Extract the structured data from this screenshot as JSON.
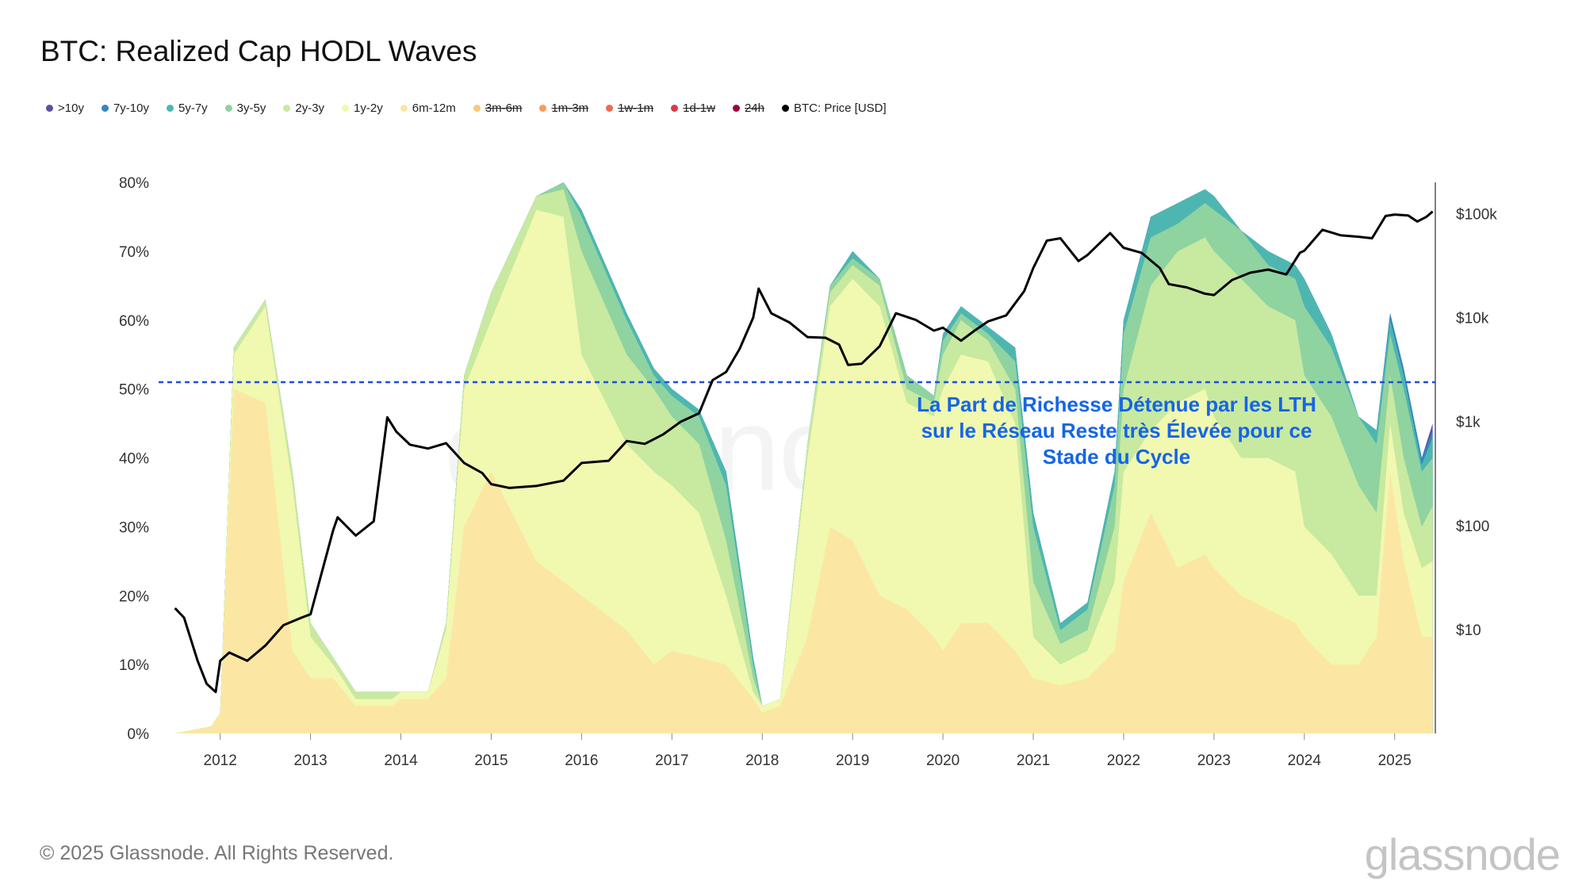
{
  "title": "BTC: Realized Cap HODL Waves",
  "legend": [
    {
      "label": ">10y",
      "color": "#5e4fa2",
      "active": true
    },
    {
      "label": "7y-10y",
      "color": "#3288bd",
      "active": true
    },
    {
      "label": "5y-7y",
      "color": "#4eb6b0",
      "active": true
    },
    {
      "label": "3y-5y",
      "color": "#8fd3a1",
      "active": true
    },
    {
      "label": "2y-3y",
      "color": "#c8e9a0",
      "active": true
    },
    {
      "label": "1y-2y",
      "color": "#f1f8b0",
      "active": true
    },
    {
      "label": "6m-12m",
      "color": "#fbe7a3",
      "active": true
    },
    {
      "label": "3m-6m",
      "color": "#fbc779",
      "active": false
    },
    {
      "label": "1m-3m",
      "color": "#f99b5b",
      "active": false
    },
    {
      "label": "1w-1m",
      "color": "#ec6a4b",
      "active": false
    },
    {
      "label": "1d-1w",
      "color": "#d63c4b",
      "active": false
    },
    {
      "label": "24h",
      "color": "#9e0142",
      "active": false
    },
    {
      "label": "BTC: Price [USD]",
      "color": "#000000",
      "active": true
    }
  ],
  "annotation": "La Part de Richesse Détenue par les LTH sur le Réseau Reste très Élevée pour ce Stade du Cycle",
  "footer": "© 2025 Glassnode. All Rights Reserved.",
  "brand": "glassnode",
  "watermark": "glassnode",
  "colors": {
    "threshold_line": "#1a4fe0",
    "annotation": "#1565e6",
    "price": "#000000"
  },
  "chart_data": {
    "type": "area",
    "title": "BTC: Realized Cap HODL Waves",
    "x_range": [
      2011.45,
      2025.45
    ],
    "x_ticks": [
      "2012",
      "2013",
      "2014",
      "2015",
      "2016",
      "2017",
      "2018",
      "2019",
      "2020",
      "2021",
      "2022",
      "2023",
      "2024",
      "2025"
    ],
    "y_left": {
      "range": [
        0,
        80
      ],
      "ticks": [
        "0%",
        "10%",
        "20%",
        "30%",
        "40%",
        "50%",
        "60%",
        "70%",
        "80%"
      ]
    },
    "y_right": {
      "scale": "log",
      "range": [
        1,
        200000
      ],
      "ticks": [
        {
          "value": 10,
          "label": "$10"
        },
        {
          "value": 100,
          "label": "$100"
        },
        {
          "value": 1000,
          "label": "$1k"
        },
        {
          "value": 10000,
          "label": "$10k"
        },
        {
          "value": 100000,
          "label": "$100k"
        }
      ]
    },
    "reference_line": {
      "y": 51,
      "style": "dashed"
    },
    "x": [
      2011.5,
      2011.9,
      2012.0,
      2012.15,
      2012.5,
      2012.8,
      2013.0,
      2013.25,
      2013.5,
      2013.9,
      2014.0,
      2014.3,
      2014.5,
      2014.7,
      2015.0,
      2015.5,
      2015.8,
      2016.0,
      2016.5,
      2016.8,
      2017.0,
      2017.3,
      2017.6,
      2017.9,
      2018.0,
      2018.2,
      2018.5,
      2018.75,
      2019.0,
      2019.3,
      2019.6,
      2019.9,
      2020.0,
      2020.2,
      2020.5,
      2020.8,
      2021.0,
      2021.3,
      2021.6,
      2021.9,
      2022.0,
      2022.3,
      2022.6,
      2022.9,
      2023.0,
      2023.3,
      2023.6,
      2023.9,
      2024.0,
      2024.3,
      2024.6,
      2024.8,
      2024.95,
      2025.1,
      2025.3,
      2025.42
    ],
    "series": [
      {
        "name": "6m-12m",
        "cumulative": [
          0,
          1,
          3,
          50,
          48,
          12,
          8,
          8,
          4,
          4,
          5,
          5,
          8,
          30,
          38,
          25,
          22,
          20,
          15,
          10,
          12,
          11,
          10,
          5,
          3,
          4,
          14,
          30,
          28,
          20,
          18,
          14,
          12,
          16,
          16,
          12,
          8,
          7,
          8,
          12,
          22,
          32,
          24,
          26,
          24,
          20,
          18,
          16,
          14,
          10,
          10,
          14,
          38,
          25,
          14,
          14
        ]
      },
      {
        "name": "1y-2y",
        "cumulative": [
          0,
          1,
          3,
          55,
          62,
          36,
          14,
          10,
          5,
          5,
          6,
          6,
          15,
          50,
          60,
          76,
          75,
          55,
          42,
          38,
          36,
          32,
          20,
          6,
          4,
          5,
          40,
          62,
          66,
          62,
          48,
          46,
          50,
          55,
          54,
          45,
          14,
          10,
          12,
          22,
          38,
          44,
          48,
          50,
          46,
          40,
          40,
          38,
          30,
          26,
          20,
          20,
          45,
          32,
          24,
          25
        ]
      },
      {
        "name": "2y-3y",
        "cumulative": [
          0,
          1,
          3,
          56,
          63,
          38,
          16,
          11,
          6,
          6,
          6,
          6,
          16,
          52,
          64,
          78,
          79,
          70,
          55,
          50,
          46,
          42,
          28,
          8,
          4,
          5,
          42,
          64,
          68,
          65,
          50,
          48,
          55,
          60,
          57,
          50,
          22,
          13,
          15,
          30,
          50,
          65,
          70,
          72,
          70,
          66,
          62,
          60,
          52,
          46,
          36,
          32,
          52,
          40,
          30,
          33
        ]
      },
      {
        "name": "3y-5y",
        "cumulative": [
          0,
          1,
          3,
          56,
          63,
          38,
          16,
          11,
          6,
          6,
          6,
          6,
          16,
          52,
          64,
          78,
          80,
          75,
          60,
          52,
          49,
          46,
          36,
          10,
          4,
          5,
          42,
          65,
          69,
          66,
          52,
          49,
          57,
          61,
          58,
          54,
          30,
          15,
          18,
          36,
          58,
          72,
          74,
          77,
          76,
          73,
          68,
          66,
          62,
          56,
          46,
          42,
          58,
          50,
          38,
          40
        ]
      },
      {
        "name": "5y-7y",
        "cumulative": [
          0,
          1,
          3,
          56,
          63,
          38,
          16,
          11,
          6,
          6,
          6,
          6,
          16,
          52,
          64,
          78,
          80,
          76,
          61,
          53,
          50,
          47,
          38,
          11,
          4,
          5,
          42,
          65,
          70,
          66,
          52,
          49,
          58,
          62,
          59,
          56,
          32,
          16,
          19,
          38,
          60,
          75,
          77,
          79,
          78,
          73,
          70,
          68,
          66,
          58,
          46,
          44,
          60,
          52,
          39,
          43
        ]
      },
      {
        "name": "7y-10y",
        "cumulative": [
          0,
          1,
          3,
          56,
          63,
          38,
          16,
          11,
          6,
          6,
          6,
          6,
          16,
          52,
          64,
          78,
          80,
          76,
          61,
          53,
          50,
          47,
          38,
          11,
          4,
          5,
          42,
          65,
          70,
          66,
          52,
          49,
          58,
          62,
          59,
          56,
          32,
          16,
          19,
          38,
          60,
          75,
          77,
          79,
          78,
          73,
          70,
          68,
          66,
          58,
          46,
          44,
          61,
          53,
          40,
          44
        ]
      },
      {
        "name": ">10y",
        "cumulative": [
          0,
          1,
          3,
          56,
          63,
          38,
          16,
          11,
          6,
          6,
          6,
          6,
          16,
          52,
          64,
          78,
          80,
          76,
          61,
          53,
          50,
          47,
          38,
          11,
          4,
          5,
          42,
          65,
          70,
          66,
          52,
          49,
          58,
          62,
          59,
          56,
          32,
          16,
          19,
          38,
          60,
          75,
          77,
          79,
          78,
          73,
          70,
          68,
          66,
          58,
          46,
          44,
          61,
          53,
          40,
          45
        ]
      }
    ],
    "price": {
      "name": "BTC: Price [USD]",
      "x": [
        2011.5,
        2011.6,
        2011.75,
        2011.85,
        2011.95,
        2012.0,
        2012.1,
        2012.3,
        2012.5,
        2012.7,
        2012.9,
        2013.0,
        2013.25,
        2013.3,
        2013.5,
        2013.7,
        2013.85,
        2013.95,
        2014.1,
        2014.3,
        2014.5,
        2014.7,
        2014.9,
        2015.0,
        2015.2,
        2015.5,
        2015.8,
        2016.0,
        2016.3,
        2016.5,
        2016.7,
        2016.9,
        2017.1,
        2017.3,
        2017.45,
        2017.6,
        2017.75,
        2017.9,
        2017.96,
        2018.1,
        2018.3,
        2018.5,
        2018.7,
        2018.85,
        2018.95,
        2019.1,
        2019.3,
        2019.48,
        2019.7,
        2019.9,
        2020.0,
        2020.2,
        2020.35,
        2020.5,
        2020.7,
        2020.9,
        2021.0,
        2021.15,
        2021.3,
        2021.5,
        2021.6,
        2021.85,
        2022.0,
        2022.2,
        2022.4,
        2022.5,
        2022.7,
        2022.9,
        2023.0,
        2023.2,
        2023.4,
        2023.6,
        2023.8,
        2023.95,
        2024.0,
        2024.2,
        2024.4,
        2024.6,
        2024.75,
        2024.9,
        2025.0,
        2025.15,
        2025.25,
        2025.35,
        2025.42
      ],
      "values": [
        16,
        13,
        5,
        3,
        2.5,
        5,
        6,
        5,
        7,
        11,
        13,
        14,
        90,
        120,
        80,
        110,
        1100,
        800,
        600,
        550,
        620,
        400,
        320,
        250,
        230,
        240,
        270,
        400,
        420,
        650,
        610,
        750,
        1000,
        1200,
        2500,
        3000,
        5000,
        10000,
        19000,
        11000,
        9000,
        6500,
        6400,
        5500,
        3500,
        3600,
        5300,
        11000,
        9500,
        7500,
        8000,
        6000,
        7500,
        9200,
        10500,
        18000,
        30000,
        55000,
        58000,
        35000,
        40000,
        65000,
        47000,
        42000,
        30000,
        21000,
        19500,
        17000,
        16500,
        23000,
        27000,
        29000,
        26000,
        42000,
        44000,
        70000,
        62000,
        60000,
        58000,
        95000,
        98000,
        96000,
        84000,
        93000,
        105000
      ]
    }
  }
}
